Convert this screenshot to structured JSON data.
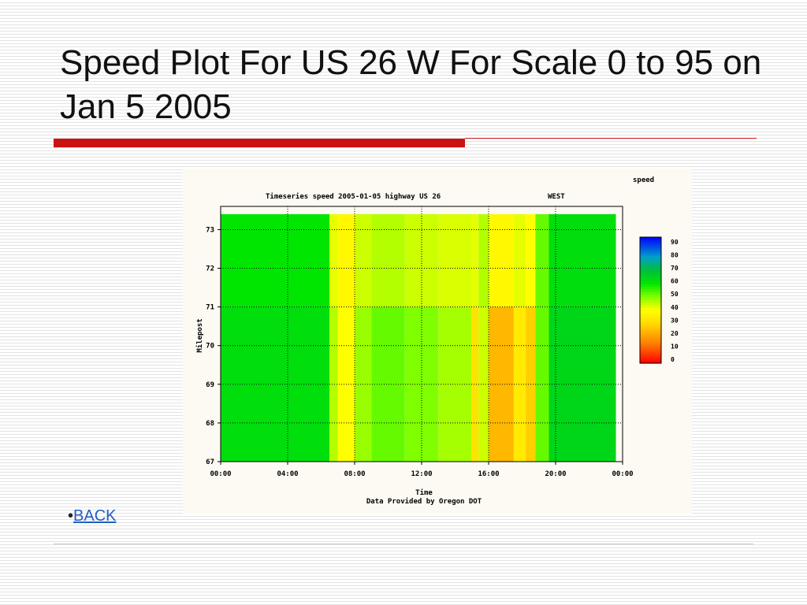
{
  "slide": {
    "title": "Speed Plot For US 26 W For Scale 0 to 95 on Jan 5 2005",
    "bullet": "•",
    "back_label": "BACK"
  },
  "colors": {
    "accent": "#cc1111",
    "link": "#1f5fbf"
  },
  "chart_data": {
    "type": "heatmap",
    "title": "Timeseries speed 2005-01-05 highway US 26",
    "direction": "WEST",
    "xlabel": "Time",
    "ylabel": "Milepost",
    "footer": "Data Provided by Oregon DOT",
    "colorbar_title": "speed",
    "x_ticks": [
      "00:00",
      "04:00",
      "08:00",
      "12:00",
      "16:00",
      "20:00",
      "00:00"
    ],
    "y_ticks": [
      "73",
      "72",
      "71",
      "70",
      "69",
      "68",
      "67"
    ],
    "colorbar_ticks": [
      "90",
      "80",
      "70",
      "60",
      "50",
      "40",
      "30",
      "20",
      "10",
      "0"
    ],
    "x_range_hours": [
      0,
      24
    ],
    "y_range_milepost": [
      67,
      73.6
    ],
    "z_range_speed": [
      0,
      95
    ],
    "grid": true,
    "time_bands": [
      {
        "start": 0.0,
        "end": 6.5,
        "speed_upper": 60,
        "speed_lower": 62
      },
      {
        "start": 6.5,
        "end": 7.0,
        "speed_upper": 42,
        "speed_lower": 46
      },
      {
        "start": 7.0,
        "end": 8.0,
        "speed_upper": 38,
        "speed_lower": 40
      },
      {
        "start": 8.0,
        "end": 9.0,
        "speed_upper": 44,
        "speed_lower": 48
      },
      {
        "start": 9.0,
        "end": 11.0,
        "speed_upper": 46,
        "speed_lower": 52
      },
      {
        "start": 11.0,
        "end": 13.0,
        "speed_upper": 44,
        "speed_lower": 50
      },
      {
        "start": 13.0,
        "end": 15.0,
        "speed_upper": 43,
        "speed_lower": 47
      },
      {
        "start": 15.0,
        "end": 15.4,
        "speed_upper": 42,
        "speed_lower": 32
      },
      {
        "start": 15.4,
        "end": 16.0,
        "speed_upper": 46,
        "speed_lower": 44
      },
      {
        "start": 16.0,
        "end": 17.5,
        "speed_upper": 38,
        "speed_lower": 24
      },
      {
        "start": 17.5,
        "end": 18.2,
        "speed_upper": 42,
        "speed_lower": 34
      },
      {
        "start": 18.2,
        "end": 18.8,
        "speed_upper": 40,
        "speed_lower": 28
      },
      {
        "start": 18.8,
        "end": 19.6,
        "speed_upper": 52,
        "speed_lower": 52
      },
      {
        "start": 19.6,
        "end": 23.6,
        "speed_upper": 62,
        "speed_lower": 64
      }
    ],
    "upper_segment_mileposts": [
      71,
      73.4
    ]
  }
}
